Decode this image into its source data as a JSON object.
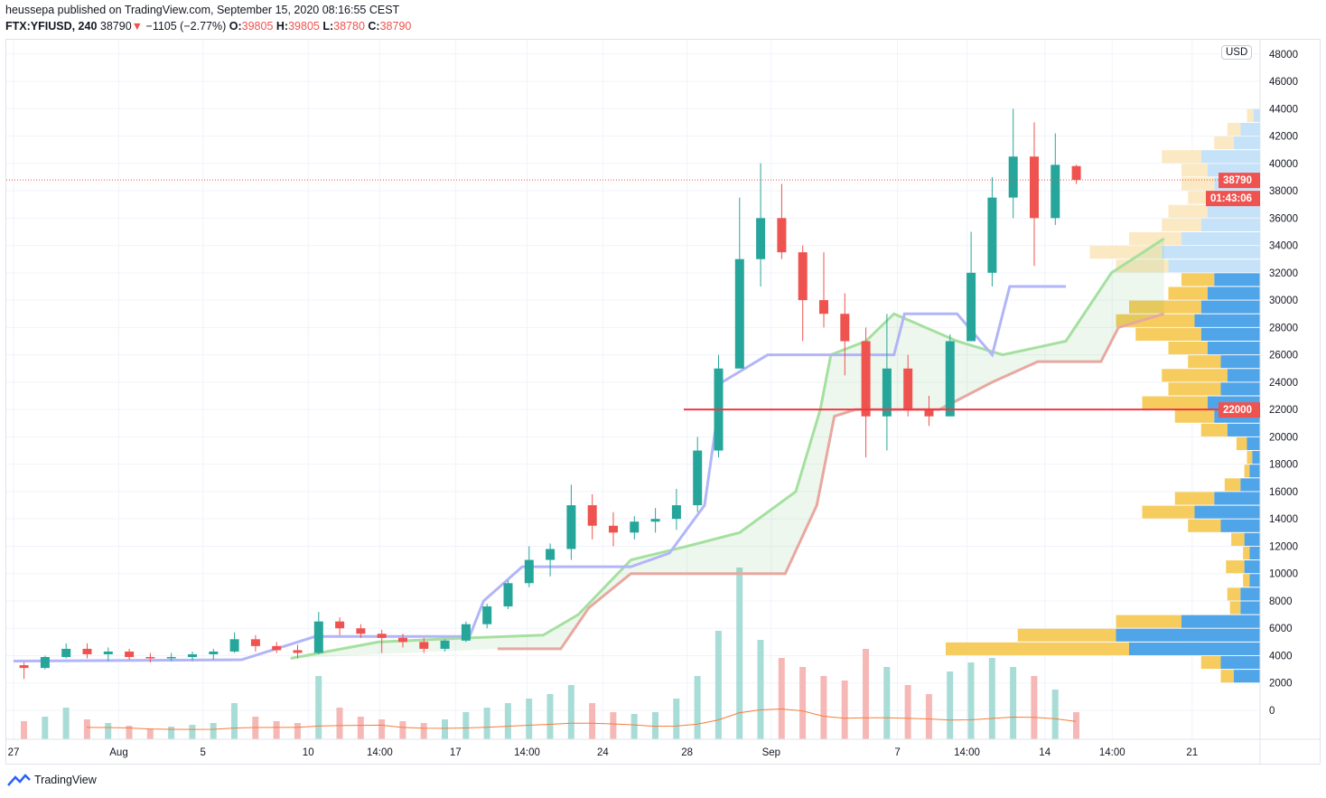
{
  "header": {
    "publisher_line": "heussepa published on TradingView.com, September 15, 2020 08:16:55 CEST",
    "symbol": "FTX:YFIUSD, 240",
    "last": "38790",
    "change": "−1105 (−2.77%)",
    "o_label": "O:",
    "o": "39805",
    "h_label": "H:",
    "h": "39805",
    "l_label": "L:",
    "l": "38780",
    "c_label": "C:",
    "c": "38790"
  },
  "currency_button": "USD",
  "last_price_tag": "38790",
  "countdown_tag": "01:43:06",
  "level_tag": "22000",
  "footer": {
    "brand": "TradingView"
  },
  "colors": {
    "up": "#26a69a",
    "down": "#ef5350",
    "kijun": "#b2b5f7",
    "span_a": "#a5e0a0",
    "span_b": "#e8a8a0",
    "level": "#f23645",
    "vp_up": "#3d9ae6",
    "vp_down": "#f5c64d",
    "vp_up_light": "#bfdff7",
    "vp_down_light": "#fbe7bd",
    "volume_ma": "#f57c3a"
  },
  "chart_data": {
    "type": "candlestick",
    "interval": "240",
    "grid": true,
    "price_axis": {
      "min": 0,
      "max": 48000,
      "step": 2000,
      "labels": [
        "0",
        "2000",
        "4000",
        "6000",
        "8000",
        "10000",
        "12000",
        "14000",
        "16000",
        "18000",
        "20000",
        "22000",
        "24000",
        "26000",
        "28000",
        "30000",
        "32000",
        "34000",
        "36000",
        "38000",
        "40000",
        "42000",
        "44000",
        "46000",
        "48000"
      ]
    },
    "time_axis": {
      "labels": [
        "27",
        "Aug",
        "5",
        "10",
        "14:00",
        "17",
        "14:00",
        "24",
        "28",
        "Sep",
        "7",
        "14:00",
        "14",
        "14:00",
        "21"
      ]
    },
    "ohlc_daily": [
      [
        "2020-07-27",
        3300,
        3500,
        2300,
        3100
      ],
      [
        "2020-07-28",
        3100,
        4000,
        3000,
        3900
      ],
      [
        "2020-07-29",
        3900,
        4900,
        3800,
        4500
      ],
      [
        "2020-07-30",
        4500,
        4900,
        3800,
        4100
      ],
      [
        "2020-07-31",
        4100,
        4600,
        3600,
        4300
      ],
      [
        "2020-08-01",
        4300,
        4500,
        3700,
        3900
      ],
      [
        "2020-08-02",
        3900,
        4200,
        3500,
        3800
      ],
      [
        "2020-08-03",
        3800,
        4200,
        3600,
        3900
      ],
      [
        "2020-08-04",
        3900,
        4300,
        3600,
        4100
      ],
      [
        "2020-08-05",
        4100,
        4500,
        3700,
        4300
      ],
      [
        "2020-08-06",
        4300,
        5700,
        4200,
        5200
      ],
      [
        "2020-08-07",
        5200,
        5500,
        4300,
        4700
      ],
      [
        "2020-08-08",
        4700,
        5000,
        4200,
        4400
      ],
      [
        "2020-08-09",
        4400,
        4800,
        3800,
        4200
      ],
      [
        "2020-08-10",
        4200,
        7200,
        4100,
        6500
      ],
      [
        "2020-08-11",
        6500,
        6800,
        5500,
        6000
      ],
      [
        "2020-08-12",
        6000,
        6300,
        5300,
        5600
      ],
      [
        "2020-08-13",
        5600,
        5900,
        4200,
        5300
      ],
      [
        "2020-08-14",
        5300,
        5600,
        4600,
        5000
      ],
      [
        "2020-08-15",
        5000,
        5300,
        4200,
        4500
      ],
      [
        "2020-08-16",
        4500,
        5200,
        4300,
        5100
      ],
      [
        "2020-08-17",
        5100,
        6500,
        5000,
        6300
      ],
      [
        "2020-08-18",
        6300,
        7800,
        6000,
        7600
      ],
      [
        "2020-08-19",
        7600,
        9500,
        7400,
        9300
      ],
      [
        "2020-08-20",
        9300,
        12000,
        9000,
        11000
      ],
      [
        "2020-08-21",
        11000,
        12200,
        9800,
        11800
      ],
      [
        "2020-08-22",
        11800,
        16500,
        11000,
        15000
      ],
      [
        "2020-08-23",
        15000,
        15800,
        12500,
        13500
      ],
      [
        "2020-08-24",
        13500,
        14500,
        12000,
        13000
      ],
      [
        "2020-08-25",
        13000,
        14200,
        12500,
        13800
      ],
      [
        "2020-08-26",
        13800,
        14800,
        13000,
        14000
      ],
      [
        "2020-08-27",
        14000,
        16200,
        13200,
        15000
      ],
      [
        "2020-08-28",
        15000,
        20000,
        14500,
        19000
      ],
      [
        "2020-08-29",
        19000,
        26000,
        18500,
        25000
      ],
      [
        "2020-08-30",
        25000,
        37500,
        25000,
        33000
      ],
      [
        "2020-08-31",
        33000,
        40000,
        31000,
        36000
      ],
      [
        "2020-09-01",
        36000,
        38500,
        33000,
        33500
      ],
      [
        "2020-09-02",
        33500,
        34000,
        27000,
        30000
      ],
      [
        "2020-09-03",
        30000,
        33500,
        28000,
        29000
      ],
      [
        "2020-09-04",
        29000,
        30500,
        24500,
        27000
      ],
      [
        "2020-09-05",
        27000,
        28000,
        18500,
        21500
      ],
      [
        "2020-09-06",
        21500,
        29000,
        19000,
        25000
      ],
      [
        "2020-09-07",
        25000,
        26000,
        21500,
        22000
      ],
      [
        "2020-09-08",
        22000,
        23000,
        20800,
        21500
      ],
      [
        "2020-09-09",
        21500,
        27500,
        21500,
        27000
      ],
      [
        "2020-09-10",
        27000,
        35000,
        27000,
        32000
      ],
      [
        "2020-09-11",
        32000,
        39000,
        31000,
        37500
      ],
      [
        "2020-09-12",
        37500,
        44000,
        36000,
        40500
      ],
      [
        "2020-09-13",
        40500,
        43000,
        32500,
        36000
      ],
      [
        "2020-09-14",
        36000,
        42200,
        35500,
        39895
      ],
      [
        "2020-09-15",
        39805,
        39900,
        38500,
        38790
      ]
    ],
    "volume_daily": [
      20,
      25,
      35,
      22,
      18,
      15,
      12,
      14,
      16,
      18,
      40,
      25,
      20,
      18,
      70,
      35,
      25,
      22,
      20,
      18,
      22,
      30,
      35,
      40,
      45,
      50,
      60,
      40,
      30,
      28,
      30,
      45,
      70,
      120,
      190,
      110,
      90,
      80,
      70,
      65,
      100,
      80,
      60,
      50,
      75,
      85,
      90,
      80,
      70,
      55,
      30
    ],
    "kijun": [
      [
        "2020-07-27 00:00",
        3600
      ],
      [
        "2020-08-06 20:00",
        3700
      ],
      [
        "2020-08-10 08:00",
        5400
      ],
      [
        "2020-08-17 16:00",
        5400
      ],
      [
        "2020-08-18 08:00",
        8000
      ],
      [
        "2020-08-20 04:00",
        10500
      ],
      [
        "2020-08-25 08:00",
        10500
      ],
      [
        "2020-08-27 04:00",
        11500
      ],
      [
        "2020-08-28 20:00",
        15000
      ],
      [
        "2020-08-29 16:00",
        24000
      ],
      [
        "2020-08-31 20:00",
        26000
      ],
      [
        "2020-09-06 20:00",
        26000
      ],
      [
        "2020-09-07 08:00",
        29000
      ],
      [
        "2020-09-09 20:00",
        29000
      ],
      [
        "2020-09-11 12:00",
        26000
      ],
      [
        "2020-09-12 08:00",
        31000
      ],
      [
        "2020-09-15 00:00",
        31000
      ]
    ],
    "span_a": [
      [
        "2020-08-09 04:00",
        3800
      ],
      [
        "2020-08-13 08:00",
        5000
      ],
      [
        "2020-08-17 16:00",
        5300
      ],
      [
        "2020-08-21 04:00",
        5500
      ],
      [
        "2020-08-22 20:00",
        7000
      ],
      [
        "2020-08-25 08:00",
        11000
      ],
      [
        "2020-08-28 00:00",
        12000
      ],
      [
        "2020-08-30 12:00",
        13000
      ],
      [
        "2020-09-02 04:00",
        16000
      ],
      [
        "2020-09-03 08:00",
        22000
      ],
      [
        "2020-09-03 20:00",
        26000
      ],
      [
        "2020-09-05 12:00",
        27000
      ],
      [
        "2020-09-06 20:00",
        29000
      ],
      [
        "2020-09-09 20:00",
        27000
      ],
      [
        "2020-09-12 00:00",
        26000
      ],
      [
        "2020-09-15 00:00",
        27000
      ],
      [
        "2020-09-17 04:00",
        32000
      ],
      [
        "2020-09-19 16:00",
        34500
      ]
    ],
    "span_b": [
      [
        "2020-08-19 00:00",
        4500
      ],
      [
        "2020-08-22 00:00",
        4500
      ],
      [
        "2020-08-23 08:00",
        7500
      ],
      [
        "2020-08-25 08:00",
        10000
      ],
      [
        "2020-09-01 16:00",
        10000
      ],
      [
        "2020-09-03 04:00",
        15000
      ],
      [
        "2020-09-04 00:00",
        21500
      ],
      [
        "2020-09-05 00:00",
        22000
      ],
      [
        "2020-09-09 00:00",
        22000
      ],
      [
        "2020-09-11 12:00",
        24000
      ],
      [
        "2020-09-13 16:00",
        25500
      ],
      [
        "2020-09-16 16:00",
        25500
      ],
      [
        "2020-09-17 12:00",
        28000
      ],
      [
        "2020-09-19 16:00",
        29000
      ]
    ],
    "horizontal_level": 22000,
    "last_price": 38790,
    "volume_profile": {
      "row_size": 1000,
      "value_area": [
        2000,
        32000
      ],
      "rows": [
        [
          2000,
          20,
          10
        ],
        [
          3000,
          30,
          15
        ],
        [
          4000,
          100,
          140
        ],
        [
          5000,
          110,
          75
        ],
        [
          6000,
          60,
          50
        ],
        [
          7000,
          15,
          8
        ],
        [
          8000,
          15,
          10
        ],
        [
          9000,
          8,
          5
        ],
        [
          10000,
          12,
          14
        ],
        [
          11000,
          8,
          5
        ],
        [
          12000,
          12,
          10
        ],
        [
          13000,
          30,
          25
        ],
        [
          14000,
          50,
          40
        ],
        [
          15000,
          35,
          30
        ],
        [
          16000,
          15,
          12
        ],
        [
          17000,
          8,
          4
        ],
        [
          18000,
          6,
          4
        ],
        [
          19000,
          10,
          8
        ],
        [
          20000,
          25,
          20
        ],
        [
          21000,
          35,
          30
        ],
        [
          22000,
          40,
          50
        ],
        [
          23000,
          30,
          40
        ],
        [
          24000,
          25,
          50
        ],
        [
          25000,
          30,
          25
        ],
        [
          26000,
          40,
          30
        ],
        [
          27000,
          45,
          50
        ],
        [
          28000,
          50,
          60
        ],
        [
          29000,
          45,
          55
        ],
        [
          30000,
          40,
          30
        ],
        [
          31000,
          35,
          25
        ],
        [
          32000,
          70,
          40
        ],
        [
          33000,
          75,
          55
        ],
        [
          34000,
          60,
          40
        ],
        [
          35000,
          45,
          30
        ],
        [
          36000,
          40,
          30
        ],
        [
          37000,
          30,
          25
        ],
        [
          38000,
          35,
          25
        ],
        [
          39000,
          40,
          20
        ],
        [
          40000,
          45,
          30
        ],
        [
          41000,
          20,
          15
        ],
        [
          42000,
          15,
          10
        ],
        [
          43000,
          5,
          5
        ]
      ]
    }
  }
}
